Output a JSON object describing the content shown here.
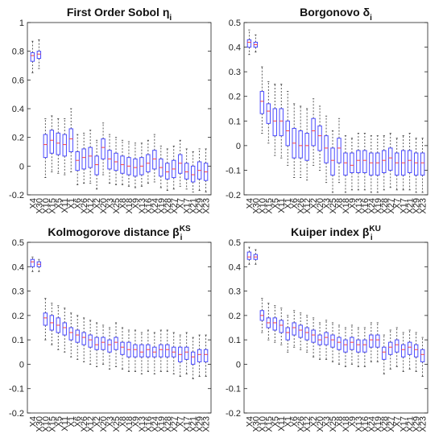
{
  "chart_data": [
    {
      "type": "box",
      "title": "First Order Sobol η",
      "title_sub": "i",
      "title_sup": "",
      "ylim": [
        -0.2,
        1
      ],
      "yticks": [
        "-0.2",
        "0",
        "0.2",
        "0.4",
        "0.6",
        "0.8",
        "1"
      ],
      "categories": [
        "X4",
        "X30",
        "X10",
        "X15",
        "X5",
        "X11",
        "X1",
        "X6",
        "X26",
        "X12",
        "X2",
        "X20",
        "X3",
        "X25",
        "X8",
        "X18",
        "X9",
        "X13",
        "X16",
        "X24",
        "X19",
        "X28",
        "X27",
        "X7",
        "X17",
        "X21",
        "X29",
        "X23"
      ],
      "median": [
        0.77,
        0.78,
        0.15,
        0.18,
        0.16,
        0.15,
        0.19,
        0.04,
        0.06,
        0.07,
        0.01,
        0.13,
        0.05,
        0.03,
        0.01,
        0.0,
        -0.01,
        0.0,
        0.02,
        0.05,
        -0.01,
        -0.04,
        -0.02,
        0.02,
        -0.04,
        -0.06,
        -0.03,
        -0.04
      ],
      "q1": [
        0.73,
        0.75,
        0.06,
        0.09,
        0.08,
        0.07,
        0.1,
        -0.03,
        -0.02,
        -0.01,
        -0.06,
        0.05,
        -0.02,
        -0.03,
        -0.05,
        -0.06,
        -0.07,
        -0.06,
        -0.04,
        -0.02,
        -0.07,
        -0.09,
        -0.08,
        -0.05,
        -0.09,
        -0.11,
        -0.09,
        -0.1
      ],
      "q3": [
        0.79,
        0.8,
        0.22,
        0.25,
        0.23,
        0.22,
        0.26,
        0.1,
        0.12,
        0.13,
        0.07,
        0.19,
        0.11,
        0.09,
        0.07,
        0.06,
        0.05,
        0.06,
        0.08,
        0.11,
        0.05,
        0.02,
        0.04,
        0.08,
        0.02,
        0.0,
        0.03,
        0.02
      ],
      "whisker_low": [
        0.65,
        0.68,
        -0.08,
        -0.04,
        -0.05,
        -0.06,
        -0.04,
        -0.13,
        -0.12,
        -0.12,
        -0.16,
        -0.06,
        -0.12,
        -0.13,
        -0.13,
        -0.14,
        -0.15,
        -0.14,
        -0.12,
        -0.11,
        -0.15,
        -0.17,
        -0.16,
        -0.14,
        -0.16,
        -0.18,
        -0.17,
        -0.18
      ],
      "whisker_high": [
        0.87,
        0.88,
        0.33,
        0.35,
        0.33,
        0.33,
        0.4,
        0.22,
        0.23,
        0.25,
        0.18,
        0.3,
        0.22,
        0.2,
        0.18,
        0.17,
        0.16,
        0.16,
        0.18,
        0.22,
        0.14,
        0.12,
        0.14,
        0.18,
        0.12,
        0.1,
        0.12,
        0.12
      ]
    },
    {
      "type": "box",
      "title": "Borgonovo δ",
      "title_sub": "i",
      "title_sup": "",
      "ylim": [
        -0.2,
        0.5
      ],
      "yticks": [
        "-0.2",
        "-0.1",
        "0",
        "0.1",
        "0.2",
        "0.3",
        "0.4",
        "0.5"
      ],
      "categories": [
        "X4",
        "X30",
        "X10",
        "X15",
        "X5",
        "X11",
        "X1",
        "X6",
        "X26",
        "X12",
        "X2",
        "X20",
        "X3",
        "X25",
        "X8",
        "X18",
        "X9",
        "X13",
        "X16",
        "X24",
        "X19",
        "X28",
        "X27",
        "X7",
        "X17",
        "X21",
        "X29",
        "X23"
      ],
      "median": [
        0.42,
        0.41,
        0.18,
        0.14,
        0.1,
        0.1,
        0.06,
        0.01,
        0.0,
        0.0,
        0.06,
        0.04,
        -0.01,
        -0.06,
        -0.01,
        -0.07,
        -0.08,
        -0.06,
        -0.06,
        -0.07,
        -0.07,
        -0.06,
        -0.05,
        -0.07,
        -0.07,
        -0.06,
        -0.07,
        -0.07
      ],
      "q1": [
        0.4,
        0.4,
        0.13,
        0.09,
        0.04,
        0.04,
        0.0,
        -0.05,
        -0.05,
        -0.06,
        0.0,
        -0.02,
        -0.07,
        -0.12,
        -0.07,
        -0.12,
        -0.11,
        -0.11,
        -0.11,
        -0.12,
        -0.12,
        -0.11,
        -0.1,
        -0.12,
        -0.12,
        -0.11,
        -0.12,
        -0.12
      ],
      "q3": [
        0.43,
        0.42,
        0.22,
        0.17,
        0.15,
        0.15,
        0.1,
        0.07,
        0.06,
        0.05,
        0.11,
        0.08,
        0.04,
        -0.01,
        0.03,
        -0.03,
        -0.03,
        -0.02,
        -0.02,
        -0.03,
        -0.03,
        -0.02,
        -0.01,
        -0.03,
        -0.02,
        -0.02,
        -0.03,
        -0.03
      ],
      "whisker_low": [
        0.37,
        0.38,
        0.05,
        0.01,
        -0.04,
        -0.05,
        -0.08,
        -0.13,
        -0.13,
        -0.14,
        -0.08,
        -0.1,
        -0.15,
        -0.19,
        -0.15,
        -0.19,
        -0.18,
        -0.18,
        -0.18,
        -0.19,
        -0.19,
        -0.18,
        -0.17,
        -0.18,
        -0.18,
        -0.18,
        -0.19,
        -0.19
      ],
      "whisker_high": [
        0.47,
        0.45,
        0.32,
        0.26,
        0.25,
        0.25,
        0.22,
        0.17,
        0.16,
        0.15,
        0.19,
        0.16,
        0.12,
        0.06,
        0.11,
        0.04,
        0.03,
        0.05,
        0.05,
        0.04,
        0.04,
        0.04,
        0.05,
        0.03,
        0.04,
        0.05,
        0.03,
        0.03
      ]
    },
    {
      "type": "box",
      "title": "Kolmogorove distance β",
      "title_sub": "i",
      "title_sup": "KS",
      "ylim": [
        -0.2,
        0.5
      ],
      "yticks": [
        "-0.2",
        "-0.1",
        "0",
        "0.1",
        "0.2",
        "0.3",
        "0.4",
        "0.5"
      ],
      "categories": [
        "X4",
        "X30",
        "X10",
        "X15",
        "X5",
        "X11",
        "X1",
        "X6",
        "X26",
        "X12",
        "X2",
        "X20",
        "X3",
        "X25",
        "X8",
        "X18",
        "X9",
        "X13",
        "X16",
        "X24",
        "X19",
        "X28",
        "X27",
        "X7",
        "X17",
        "X21",
        "X29",
        "X23"
      ],
      "median": [
        0.42,
        0.41,
        0.19,
        0.17,
        0.16,
        0.15,
        0.13,
        0.12,
        0.11,
        0.1,
        0.08,
        0.09,
        0.08,
        0.09,
        0.07,
        0.06,
        0.06,
        0.05,
        0.06,
        0.05,
        0.06,
        0.06,
        0.05,
        0.04,
        0.05,
        0.03,
        0.04,
        0.04
      ],
      "q1": [
        0.4,
        0.4,
        0.16,
        0.14,
        0.13,
        0.12,
        0.1,
        0.09,
        0.08,
        0.07,
        0.06,
        0.06,
        0.05,
        0.06,
        0.04,
        0.03,
        0.03,
        0.03,
        0.03,
        0.03,
        0.03,
        0.03,
        0.03,
        0.01,
        0.02,
        0.0,
        0.01,
        0.01
      ],
      "q3": [
        0.43,
        0.42,
        0.21,
        0.2,
        0.19,
        0.17,
        0.15,
        0.14,
        0.13,
        0.12,
        0.11,
        0.11,
        0.1,
        0.11,
        0.09,
        0.09,
        0.08,
        0.08,
        0.08,
        0.07,
        0.08,
        0.08,
        0.07,
        0.07,
        0.07,
        0.05,
        0.06,
        0.06
      ],
      "whisker_low": [
        0.38,
        0.38,
        0.1,
        0.08,
        0.06,
        0.05,
        0.03,
        0.02,
        0.01,
        0.0,
        -0.01,
        0.0,
        -0.02,
        -0.01,
        -0.02,
        -0.03,
        -0.03,
        -0.04,
        -0.03,
        -0.04,
        -0.03,
        -0.03,
        -0.04,
        -0.05,
        -0.04,
        -0.06,
        -0.05,
        -0.05
      ],
      "whisker_high": [
        0.44,
        0.43,
        0.27,
        0.25,
        0.24,
        0.23,
        0.21,
        0.2,
        0.19,
        0.18,
        0.17,
        0.16,
        0.15,
        0.17,
        0.15,
        0.14,
        0.14,
        0.13,
        0.14,
        0.13,
        0.14,
        0.14,
        0.13,
        0.12,
        0.13,
        0.11,
        0.12,
        0.12
      ]
    },
    {
      "type": "box",
      "title": "Kuiper index β",
      "title_sub": "i",
      "title_sup": "KU",
      "ylim": [
        -0.2,
        0.5
      ],
      "yticks": [
        "-0.2",
        "-0.1",
        "0",
        "0.1",
        "0.2",
        "0.3",
        "0.4",
        "0.5"
      ],
      "categories": [
        "X4",
        "X30",
        "X10",
        "X15",
        "X5",
        "X11",
        "X1",
        "X6",
        "X26",
        "X12",
        "X2",
        "X20",
        "X3",
        "X25",
        "X8",
        "X18",
        "X9",
        "X13",
        "X16",
        "X24",
        "X19",
        "X28",
        "X27",
        "X7",
        "X17",
        "X21",
        "X29",
        "X23"
      ],
      "median": [
        0.44,
        0.44,
        0.2,
        0.17,
        0.17,
        0.16,
        0.13,
        0.15,
        0.14,
        0.13,
        0.12,
        0.1,
        0.11,
        0.1,
        0.09,
        0.08,
        0.09,
        0.08,
        0.08,
        0.1,
        0.1,
        0.05,
        0.07,
        0.08,
        0.06,
        0.07,
        0.06,
        0.04
      ],
      "q1": [
        0.43,
        0.43,
        0.18,
        0.15,
        0.14,
        0.13,
        0.1,
        0.12,
        0.11,
        0.1,
        0.09,
        0.08,
        0.08,
        0.07,
        0.06,
        0.05,
        0.06,
        0.05,
        0.05,
        0.07,
        0.07,
        0.02,
        0.04,
        0.05,
        0.03,
        0.04,
        0.03,
        0.01
      ],
      "q3": [
        0.46,
        0.45,
        0.22,
        0.19,
        0.19,
        0.18,
        0.15,
        0.17,
        0.16,
        0.15,
        0.14,
        0.12,
        0.13,
        0.12,
        0.11,
        0.1,
        0.11,
        0.1,
        0.1,
        0.12,
        0.12,
        0.07,
        0.09,
        0.1,
        0.08,
        0.09,
        0.08,
        0.06
      ],
      "whisker_low": [
        0.41,
        0.41,
        0.13,
        0.1,
        0.09,
        0.08,
        0.05,
        0.07,
        0.06,
        0.05,
        0.03,
        0.02,
        0.02,
        0.01,
        0.0,
        -0.01,
        0.0,
        -0.01,
        -0.01,
        0.01,
        0.01,
        -0.04,
        -0.02,
        -0.01,
        -0.03,
        -0.02,
        -0.03,
        -0.05
      ],
      "whisker_high": [
        0.48,
        0.47,
        0.27,
        0.25,
        0.24,
        0.23,
        0.2,
        0.22,
        0.21,
        0.2,
        0.19,
        0.17,
        0.18,
        0.17,
        0.16,
        0.15,
        0.16,
        0.15,
        0.15,
        0.17,
        0.17,
        0.12,
        0.14,
        0.15,
        0.13,
        0.14,
        0.13,
        0.11
      ]
    }
  ],
  "colors": {
    "box": "#4a4aff",
    "median": "#ff4040",
    "whisker": "#333333",
    "axis": "#222222"
  }
}
